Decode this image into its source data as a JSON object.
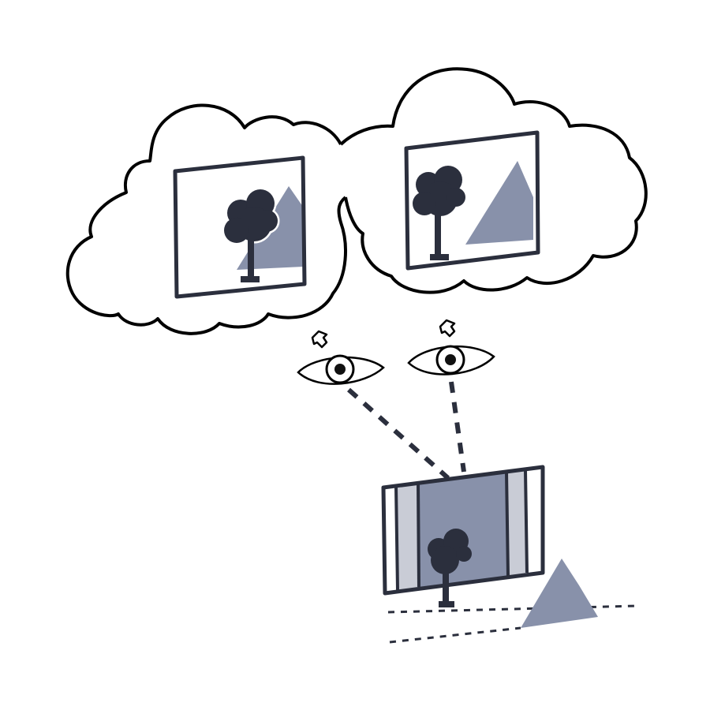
{
  "diagram": {
    "colors": {
      "background": "#ffffff",
      "outline": "#000000",
      "dark": "#2b2f3d",
      "mountain": "#8891aa",
      "screen": "#8891aa",
      "side_panel": "#c9ccd6"
    },
    "elements": [
      "thought-cloud-left",
      "thought-cloud-right",
      "imagined-picture-left",
      "imagined-picture-right",
      "left-eye",
      "right-eye",
      "view-frame",
      "real-tree",
      "real-mountain"
    ]
  }
}
